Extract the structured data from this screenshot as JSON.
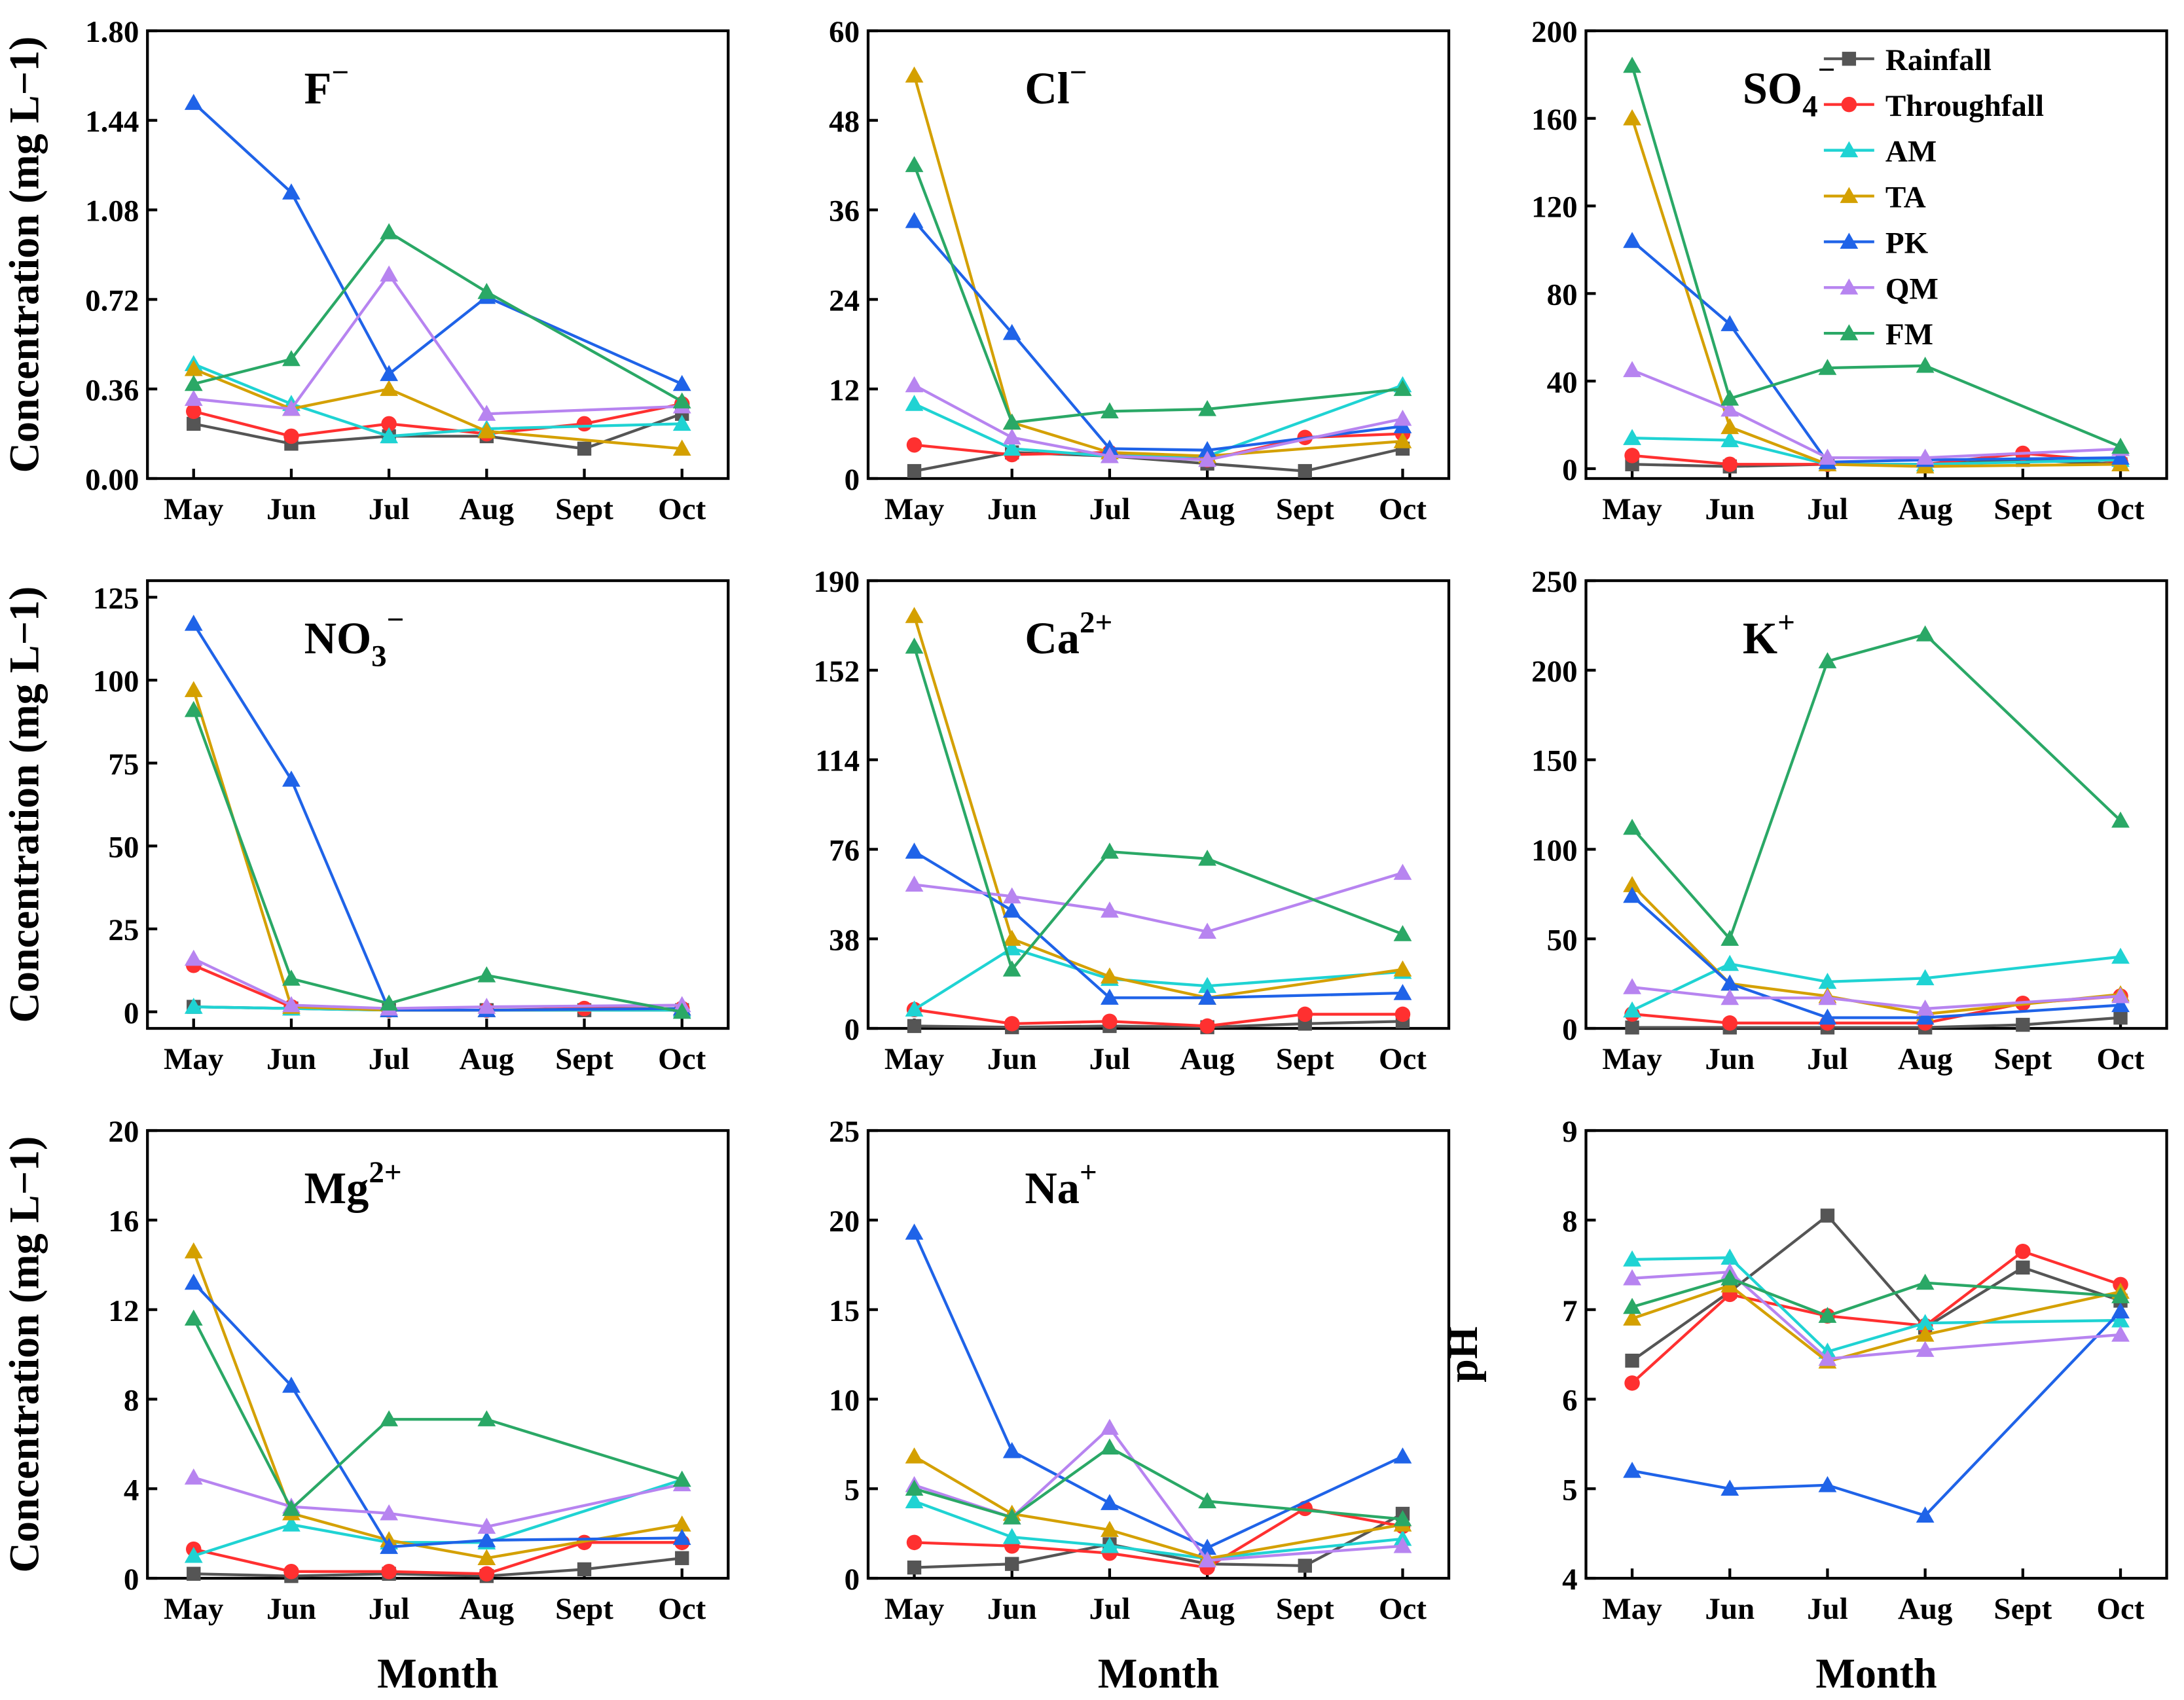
{
  "chart_data": [
    {
      "type": "line",
      "title": {
        "base": "F",
        "sub": "",
        "sup": "−"
      },
      "ylabel": "Concentration (mg L−1)",
      "xlabel": "",
      "ylim": [
        0,
        1.8
      ],
      "yticks": [
        "0.00",
        "0.36",
        "0.72",
        "1.08",
        "1.44",
        "1.80"
      ],
      "ytick_values": [
        0,
        0.36,
        0.72,
        1.08,
        1.44,
        1.8
      ],
      "series": [
        {
          "name": "Rainfall",
          "values": [
            0.22,
            0.14,
            0.17,
            0.17,
            0.12,
            0.26
          ]
        },
        {
          "name": "Throughfall",
          "values": [
            0.27,
            0.17,
            0.22,
            0.18,
            0.22,
            0.3
          ]
        },
        {
          "name": "AM",
          "values": [
            0.46,
            0.3,
            0.17,
            0.2,
            null,
            0.22
          ]
        },
        {
          "name": "TA",
          "values": [
            0.44,
            0.28,
            0.36,
            0.19,
            null,
            0.12
          ]
        },
        {
          "name": "PK",
          "values": [
            1.51,
            1.15,
            0.42,
            0.73,
            null,
            0.38
          ]
        },
        {
          "name": "QM",
          "values": [
            0.32,
            0.28,
            0.82,
            0.26,
            null,
            0.29
          ]
        },
        {
          "name": "FM",
          "values": [
            0.38,
            0.48,
            0.99,
            0.75,
            null,
            0.31
          ]
        }
      ]
    },
    {
      "type": "line",
      "title": {
        "base": "Cl",
        "sub": "",
        "sup": "−"
      },
      "ylabel": "",
      "xlabel": "",
      "ylim": [
        0,
        60
      ],
      "yticks": [
        "0",
        "12",
        "24",
        "36",
        "48",
        "60"
      ],
      "ytick_values": [
        0,
        12,
        24,
        36,
        48,
        60
      ],
      "series": [
        {
          "name": "Rainfall",
          "values": [
            1,
            3.5,
            3,
            2,
            1,
            4
          ]
        },
        {
          "name": "Throughfall",
          "values": [
            4.5,
            3.2,
            3.5,
            2.5,
            5.5,
            6
          ]
        },
        {
          "name": "AM",
          "values": [
            10,
            4,
            3,
            3,
            null,
            12.5
          ]
        },
        {
          "name": "TA",
          "values": [
            54,
            7.5,
            3.5,
            3,
            null,
            5
          ]
        },
        {
          "name": "PK",
          "values": [
            34.5,
            19.5,
            4,
            3.8,
            null,
            7
          ]
        },
        {
          "name": "QM",
          "values": [
            12.5,
            5.5,
            3,
            2.5,
            null,
            8
          ]
        },
        {
          "name": "FM",
          "values": [
            42,
            7.5,
            9,
            9.3,
            null,
            12
          ]
        }
      ]
    },
    {
      "type": "line",
      "title": {
        "base": "SO",
        "sub": "4",
        "sup": "−"
      },
      "ylabel": "",
      "xlabel": "",
      "ylim": [
        -4.5,
        200
      ],
      "yticks": [
        "0",
        "40",
        "80",
        "120",
        "160",
        "200"
      ],
      "ytick_values": [
        0,
        40,
        80,
        120,
        160,
        200
      ],
      "series": [
        {
          "name": "Rainfall",
          "values": [
            2,
            1,
            2,
            2,
            4,
            2
          ]
        },
        {
          "name": "Throughfall",
          "values": [
            6,
            2,
            2,
            2,
            7,
            3
          ]
        },
        {
          "name": "AM",
          "values": [
            14,
            13,
            2,
            2,
            null,
            4
          ]
        },
        {
          "name": "TA",
          "values": [
            160,
            19,
            2,
            1,
            null,
            2
          ]
        },
        {
          "name": "PK",
          "values": [
            104,
            66,
            3,
            4,
            null,
            5
          ]
        },
        {
          "name": "QM",
          "values": [
            45,
            27,
            5,
            5,
            null,
            9
          ]
        },
        {
          "name": "FM",
          "values": [
            184,
            32,
            46,
            47,
            null,
            10
          ]
        }
      ]
    },
    {
      "type": "line",
      "title": {
        "base": "NO",
        "sub": "3",
        "sup": "−"
      },
      "ylabel": "Concentration (mg L−1)",
      "xlabel": "",
      "ylim": [
        -5,
        130
      ],
      "yticks": [
        "0",
        "25",
        "50",
        "75",
        "100",
        "125"
      ],
      "ytick_values": [
        0,
        25,
        50,
        75,
        100,
        125
      ],
      "series": [
        {
          "name": "Rainfall",
          "values": [
            1.5,
            1,
            0.5,
            0.5,
            0.5,
            0.5
          ]
        },
        {
          "name": "Throughfall",
          "values": [
            14,
            1.5,
            0.5,
            0.5,
            1,
            1
          ]
        },
        {
          "name": "AM",
          "values": [
            1.5,
            1,
            0.5,
            0.5,
            null,
            0.5
          ]
        },
        {
          "name": "TA",
          "values": [
            97,
            1.5,
            0.5,
            0.5,
            null,
            1
          ]
        },
        {
          "name": "PK",
          "values": [
            117,
            70,
            0.5,
            0.5,
            null,
            1
          ]
        },
        {
          "name": "QM",
          "values": [
            16,
            2,
            1,
            1.5,
            null,
            2
          ]
        },
        {
          "name": "FM",
          "values": [
            91,
            10,
            2.5,
            11,
            null,
            0
          ]
        }
      ]
    },
    {
      "type": "line",
      "title": {
        "base": "Ca",
        "sub": "",
        "sup": "2+"
      },
      "ylabel": "",
      "xlabel": "",
      "ylim": [
        0,
        190
      ],
      "yticks": [
        "0",
        "38",
        "76",
        "114",
        "152",
        "190"
      ],
      "ytick_values": [
        0,
        38,
        76,
        114,
        152,
        190
      ],
      "series": [
        {
          "name": "Rainfall",
          "values": [
            1,
            0.5,
            1,
            0.5,
            2,
            3
          ]
        },
        {
          "name": "Throughfall",
          "values": [
            8,
            2,
            3,
            1,
            6,
            6
          ]
        },
        {
          "name": "AM",
          "values": [
            8,
            34,
            21,
            18,
            null,
            24
          ]
        },
        {
          "name": "TA",
          "values": [
            175,
            38,
            22,
            13,
            null,
            25
          ]
        },
        {
          "name": "PK",
          "values": [
            75,
            50,
            13,
            13,
            null,
            15
          ]
        },
        {
          "name": "QM",
          "values": [
            61,
            56,
            50,
            41,
            null,
            66
          ]
        },
        {
          "name": "FM",
          "values": [
            162,
            25,
            75,
            72,
            null,
            40
          ]
        }
      ]
    },
    {
      "type": "line",
      "title": {
        "base": "K",
        "sub": "",
        "sup": "+"
      },
      "ylabel": "",
      "xlabel": "",
      "ylim": [
        0,
        250
      ],
      "yticks": [
        "0",
        "50",
        "100",
        "150",
        "200",
        "250"
      ],
      "ytick_values": [
        0,
        50,
        100,
        150,
        200,
        250
      ],
      "series": [
        {
          "name": "Rainfall",
          "values": [
            0.5,
            0.5,
            0.5,
            0.5,
            2,
            6
          ]
        },
        {
          "name": "Throughfall",
          "values": [
            8,
            3,
            3,
            3,
            14,
            18
          ]
        },
        {
          "name": "AM",
          "values": [
            10,
            36,
            26,
            28,
            null,
            40
          ]
        },
        {
          "name": "TA",
          "values": [
            80,
            25,
            18,
            8,
            null,
            19
          ]
        },
        {
          "name": "PK",
          "values": [
            74,
            25,
            6,
            6,
            null,
            13
          ]
        },
        {
          "name": "QM",
          "values": [
            23,
            17,
            17,
            11,
            null,
            18
          ]
        },
        {
          "name": "FM",
          "values": [
            112,
            50,
            205,
            220,
            null,
            116
          ]
        }
      ]
    },
    {
      "type": "line",
      "title": {
        "base": "Mg",
        "sub": "",
        "sup": "2+"
      },
      "ylabel": "Concentration (mg L−1)",
      "xlabel": "Month",
      "ylim": [
        0,
        20
      ],
      "yticks": [
        "0",
        "4",
        "8",
        "12",
        "16",
        "20"
      ],
      "ytick_values": [
        0,
        4,
        8,
        12,
        16,
        20
      ],
      "series": [
        {
          "name": "Rainfall",
          "values": [
            0.2,
            0.1,
            0.2,
            0.1,
            0.4,
            0.9
          ]
        },
        {
          "name": "Throughfall",
          "values": [
            1.3,
            0.3,
            0.3,
            0.2,
            1.6,
            1.6
          ]
        },
        {
          "name": "AM",
          "values": [
            1.0,
            2.4,
            1.6,
            1.6,
            null,
            4.4
          ]
        },
        {
          "name": "TA",
          "values": [
            14.6,
            2.9,
            1.7,
            0.9,
            null,
            2.4
          ]
        },
        {
          "name": "PK",
          "values": [
            13.2,
            8.6,
            1.4,
            1.7,
            null,
            1.8
          ]
        },
        {
          "name": "QM",
          "values": [
            4.5,
            3.2,
            2.9,
            2.3,
            null,
            4.2
          ]
        },
        {
          "name": "FM",
          "values": [
            11.6,
            3.1,
            7.1,
            7.1,
            null,
            4.4
          ]
        }
      ]
    },
    {
      "type": "line",
      "title": {
        "base": "Na",
        "sub": "",
        "sup": "+"
      },
      "ylabel": "",
      "xlabel": "Month",
      "ylim": [
        0,
        25
      ],
      "yticks": [
        "0",
        "5",
        "10",
        "15",
        "20",
        "25"
      ],
      "ytick_values": [
        0,
        5,
        10,
        15,
        20,
        25
      ],
      "series": [
        {
          "name": "Rainfall",
          "values": [
            0.6,
            0.8,
            1.9,
            0.8,
            0.7,
            3.6
          ]
        },
        {
          "name": "Throughfall",
          "values": [
            2.0,
            1.8,
            1.4,
            0.6,
            3.9,
            2.9
          ]
        },
        {
          "name": "AM",
          "values": [
            4.3,
            2.3,
            1.8,
            1.1,
            null,
            2.2
          ]
        },
        {
          "name": "TA",
          "values": [
            6.8,
            3.6,
            2.7,
            1.1,
            null,
            3.0
          ]
        },
        {
          "name": "PK",
          "values": [
            19.3,
            7.1,
            4.2,
            1.7,
            null,
            6.8
          ]
        },
        {
          "name": "QM",
          "values": [
            5.2,
            3.4,
            8.4,
            1.0,
            null,
            1.8
          ]
        },
        {
          "name": "FM",
          "values": [
            5.0,
            3.4,
            7.3,
            4.3,
            null,
            3.3
          ]
        }
      ]
    },
    {
      "type": "line",
      "title": {
        "base": "",
        "sub": "",
        "sup": ""
      },
      "ylabel": "pH",
      "xlabel": "Month",
      "ylim": [
        4,
        9
      ],
      "yticks": [
        "4",
        "5",
        "6",
        "7",
        "8",
        "9"
      ],
      "ytick_values": [
        4,
        5,
        6,
        7,
        8,
        9
      ],
      "series": [
        {
          "name": "Rainfall",
          "values": [
            6.43,
            7.2,
            8.05,
            6.8,
            7.47,
            7.1
          ]
        },
        {
          "name": "Throughfall",
          "values": [
            6.18,
            7.17,
            6.93,
            6.82,
            7.65,
            7.28
          ]
        },
        {
          "name": "AM",
          "values": [
            7.56,
            7.58,
            6.53,
            6.85,
            null,
            6.88
          ]
        },
        {
          "name": "TA",
          "values": [
            6.9,
            7.27,
            6.42,
            6.72,
            null,
            7.2
          ]
        },
        {
          "name": "PK",
          "values": [
            5.2,
            5.0,
            5.04,
            4.7,
            null,
            6.98
          ]
        },
        {
          "name": "QM",
          "values": [
            7.35,
            7.42,
            6.45,
            6.55,
            null,
            6.72
          ]
        },
        {
          "name": "FM",
          "values": [
            7.03,
            7.35,
            6.93,
            7.3,
            null,
            7.15
          ]
        }
      ]
    }
  ],
  "categories": [
    "May",
    "Jun",
    "Jul",
    "Aug",
    "Sept",
    "Oct"
  ],
  "legend": {
    "placement": "top-right of third panel",
    "entries": [
      {
        "name": "Rainfall",
        "color": "#555555",
        "marker": "square"
      },
      {
        "name": "Throughfall",
        "color": "#ff3030",
        "marker": "circle"
      },
      {
        "name": "AM",
        "color": "#1fd3d3",
        "marker": "triangle"
      },
      {
        "name": "TA",
        "color": "#d4a000",
        "marker": "triangle"
      },
      {
        "name": "PK",
        "color": "#1f63e8",
        "marker": "triangle"
      },
      {
        "name": "QM",
        "color": "#b784f0",
        "marker": "triangle"
      },
      {
        "name": "FM",
        "color": "#2aa866",
        "marker": "triangle"
      }
    ]
  }
}
